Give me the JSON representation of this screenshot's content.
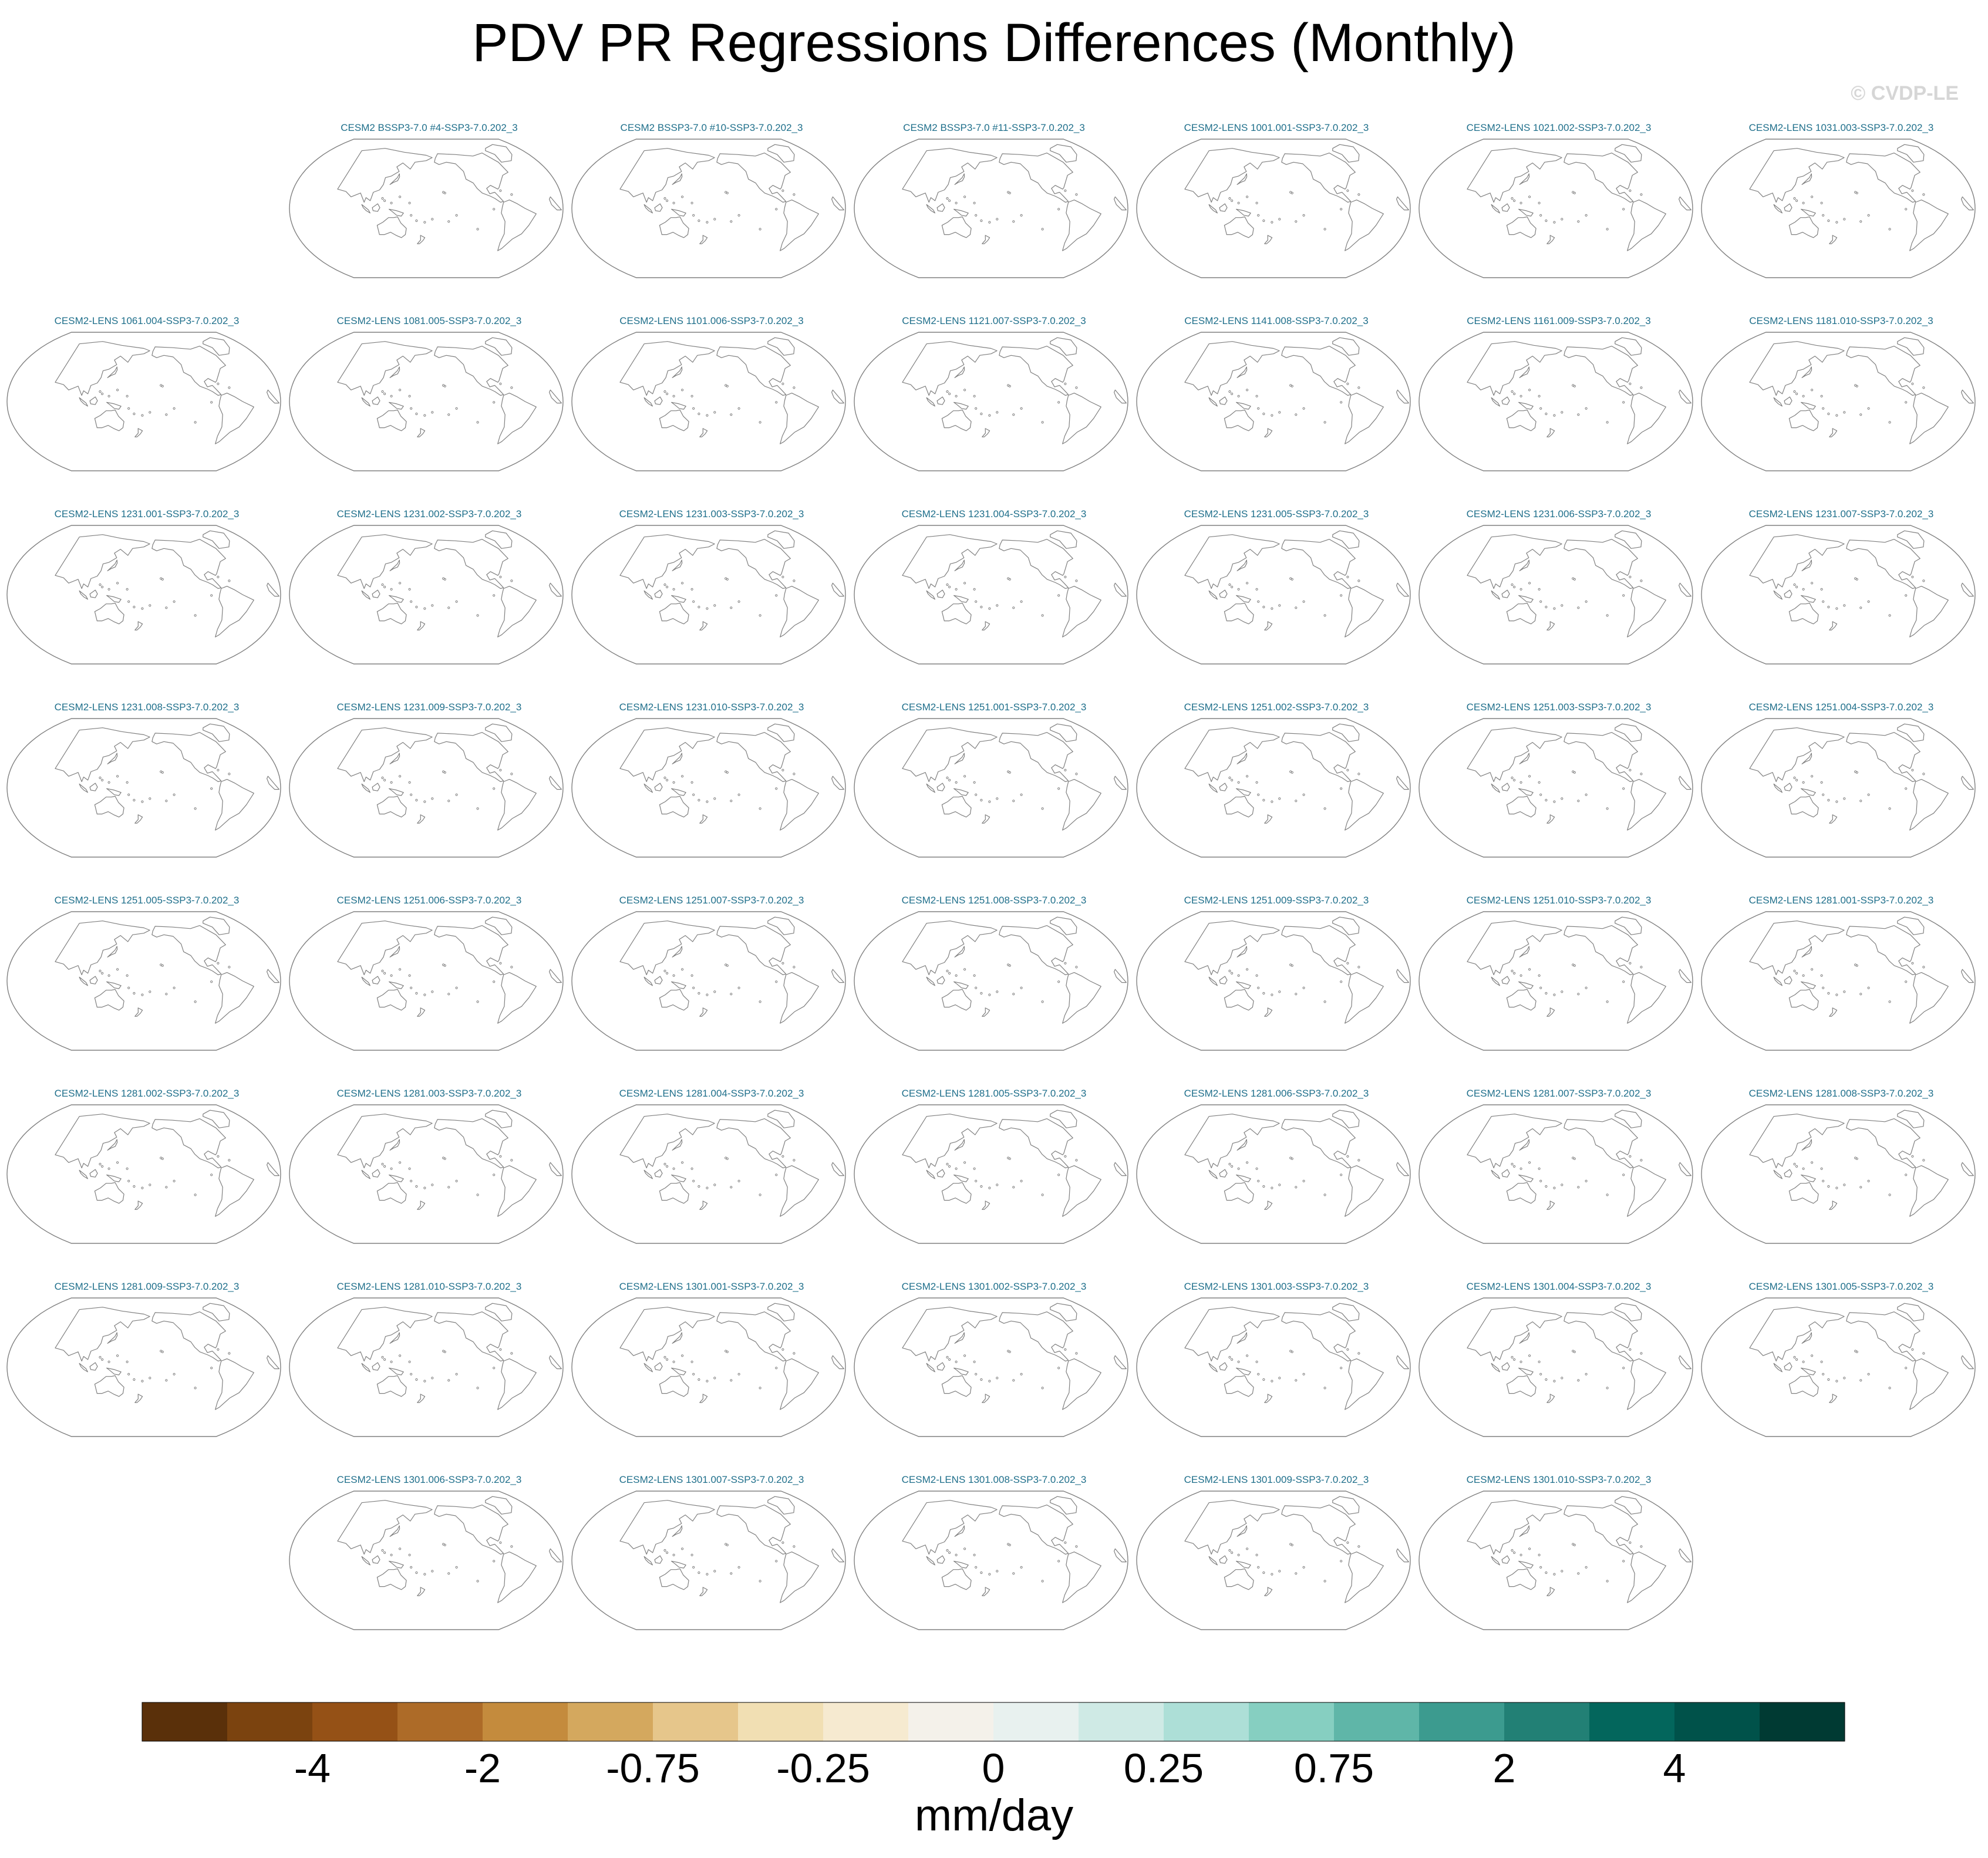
{
  "figure": {
    "title": "PDV PR Regressions Differences (Monthly)",
    "watermark": "© CVDP-LE",
    "panel_title_color": "#1f6f8b",
    "coastline_color": "#808080",
    "map_fill": "#ffffff",
    "projection": "Robinson, Pacific-centered",
    "panels": [
      {
        "row": 0,
        "col": 1,
        "title": "CESM2 BSSP3-7.0 #4-SSP3-7.0.202_3"
      },
      {
        "row": 0,
        "col": 2,
        "title": "CESM2 BSSP3-7.0 #10-SSP3-7.0.202_3"
      },
      {
        "row": 0,
        "col": 3,
        "title": "CESM2 BSSP3-7.0 #11-SSP3-7.0.202_3"
      },
      {
        "row": 0,
        "col": 4,
        "title": "CESM2-LENS 1001.001-SSP3-7.0.202_3"
      },
      {
        "row": 0,
        "col": 5,
        "title": "CESM2-LENS 1021.002-SSP3-7.0.202_3"
      },
      {
        "row": 0,
        "col": 6,
        "title": "CESM2-LENS 1031.003-SSP3-7.0.202_3"
      },
      {
        "row": 1,
        "col": 0,
        "title": "CESM2-LENS 1061.004-SSP3-7.0.202_3"
      },
      {
        "row": 1,
        "col": 1,
        "title": "CESM2-LENS 1081.005-SSP3-7.0.202_3"
      },
      {
        "row": 1,
        "col": 2,
        "title": "CESM2-LENS 1101.006-SSP3-7.0.202_3"
      },
      {
        "row": 1,
        "col": 3,
        "title": "CESM2-LENS 1121.007-SSP3-7.0.202_3"
      },
      {
        "row": 1,
        "col": 4,
        "title": "CESM2-LENS 1141.008-SSP3-7.0.202_3"
      },
      {
        "row": 1,
        "col": 5,
        "title": "CESM2-LENS 1161.009-SSP3-7.0.202_3"
      },
      {
        "row": 1,
        "col": 6,
        "title": "CESM2-LENS 1181.010-SSP3-7.0.202_3"
      },
      {
        "row": 2,
        "col": 0,
        "title": "CESM2-LENS 1231.001-SSP3-7.0.202_3"
      },
      {
        "row": 2,
        "col": 1,
        "title": "CESM2-LENS 1231.002-SSP3-7.0.202_3"
      },
      {
        "row": 2,
        "col": 2,
        "title": "CESM2-LENS 1231.003-SSP3-7.0.202_3"
      },
      {
        "row": 2,
        "col": 3,
        "title": "CESM2-LENS 1231.004-SSP3-7.0.202_3"
      },
      {
        "row": 2,
        "col": 4,
        "title": "CESM2-LENS 1231.005-SSP3-7.0.202_3"
      },
      {
        "row": 2,
        "col": 5,
        "title": "CESM2-LENS 1231.006-SSP3-7.0.202_3"
      },
      {
        "row": 2,
        "col": 6,
        "title": "CESM2-LENS 1231.007-SSP3-7.0.202_3"
      },
      {
        "row": 3,
        "col": 0,
        "title": "CESM2-LENS 1231.008-SSP3-7.0.202_3"
      },
      {
        "row": 3,
        "col": 1,
        "title": "CESM2-LENS 1231.009-SSP3-7.0.202_3"
      },
      {
        "row": 3,
        "col": 2,
        "title": "CESM2-LENS 1231.010-SSP3-7.0.202_3"
      },
      {
        "row": 3,
        "col": 3,
        "title": "CESM2-LENS 1251.001-SSP3-7.0.202_3"
      },
      {
        "row": 3,
        "col": 4,
        "title": "CESM2-LENS 1251.002-SSP3-7.0.202_3"
      },
      {
        "row": 3,
        "col": 5,
        "title": "CESM2-LENS 1251.003-SSP3-7.0.202_3"
      },
      {
        "row": 3,
        "col": 6,
        "title": "CESM2-LENS 1251.004-SSP3-7.0.202_3"
      },
      {
        "row": 4,
        "col": 0,
        "title": "CESM2-LENS 1251.005-SSP3-7.0.202_3"
      },
      {
        "row": 4,
        "col": 1,
        "title": "CESM2-LENS 1251.006-SSP3-7.0.202_3"
      },
      {
        "row": 4,
        "col": 2,
        "title": "CESM2-LENS 1251.007-SSP3-7.0.202_3"
      },
      {
        "row": 4,
        "col": 3,
        "title": "CESM2-LENS 1251.008-SSP3-7.0.202_3"
      },
      {
        "row": 4,
        "col": 4,
        "title": "CESM2-LENS 1251.009-SSP3-7.0.202_3"
      },
      {
        "row": 4,
        "col": 5,
        "title": "CESM2-LENS 1251.010-SSP3-7.0.202_3"
      },
      {
        "row": 4,
        "col": 6,
        "title": "CESM2-LENS 1281.001-SSP3-7.0.202_3"
      },
      {
        "row": 5,
        "col": 0,
        "title": "CESM2-LENS 1281.002-SSP3-7.0.202_3"
      },
      {
        "row": 5,
        "col": 1,
        "title": "CESM2-LENS 1281.003-SSP3-7.0.202_3"
      },
      {
        "row": 5,
        "col": 2,
        "title": "CESM2-LENS 1281.004-SSP3-7.0.202_3"
      },
      {
        "row": 5,
        "col": 3,
        "title": "CESM2-LENS 1281.005-SSP3-7.0.202_3"
      },
      {
        "row": 5,
        "col": 4,
        "title": "CESM2-LENS 1281.006-SSP3-7.0.202_3"
      },
      {
        "row": 5,
        "col": 5,
        "title": "CESM2-LENS 1281.007-SSP3-7.0.202_3"
      },
      {
        "row": 5,
        "col": 6,
        "title": "CESM2-LENS 1281.008-SSP3-7.0.202_3"
      },
      {
        "row": 6,
        "col": 0,
        "title": "CESM2-LENS 1281.009-SSP3-7.0.202_3"
      },
      {
        "row": 6,
        "col": 1,
        "title": "CESM2-LENS 1281.010-SSP3-7.0.202_3"
      },
      {
        "row": 6,
        "col": 2,
        "title": "CESM2-LENS 1301.001-SSP3-7.0.202_3"
      },
      {
        "row": 6,
        "col": 3,
        "title": "CESM2-LENS 1301.002-SSP3-7.0.202_3"
      },
      {
        "row": 6,
        "col": 4,
        "title": "CESM2-LENS 1301.003-SSP3-7.0.202_3"
      },
      {
        "row": 6,
        "col": 5,
        "title": "CESM2-LENS 1301.004-SSP3-7.0.202_3"
      },
      {
        "row": 6,
        "col": 6,
        "title": "CESM2-LENS 1301.005-SSP3-7.0.202_3"
      },
      {
        "row": 7,
        "col": 1,
        "title": "CESM2-LENS 1301.006-SSP3-7.0.202_3"
      },
      {
        "row": 7,
        "col": 2,
        "title": "CESM2-LENS 1301.007-SSP3-7.0.202_3"
      },
      {
        "row": 7,
        "col": 3,
        "title": "CESM2-LENS 1301.008-SSP3-7.0.202_3"
      },
      {
        "row": 7,
        "col": 4,
        "title": "CESM2-LENS 1301.009-SSP3-7.0.202_3"
      },
      {
        "row": 7,
        "col": 5,
        "title": "CESM2-LENS 1301.010-SSP3-7.0.202_3"
      }
    ]
  },
  "colorbar": {
    "units": "mm/day",
    "colors": [
      "#5a300a",
      "#7b430f",
      "#955116",
      "#ad6b28",
      "#c48b3d",
      "#d4a85e",
      "#e6c68b",
      "#f1dfb3",
      "#f6ead0",
      "#f4f1ea",
      "#e8f1ef",
      "#cfeae5",
      "#addfd7",
      "#86cfc1",
      "#5fb6a8",
      "#3c9b8f",
      "#228075",
      "#03665c",
      "#00524a",
      "#003a33"
    ],
    "ticks": [
      {
        "index": 2,
        "label": "-4"
      },
      {
        "index": 4,
        "label": "-2"
      },
      {
        "index": 6,
        "label": "-0.75"
      },
      {
        "index": 8,
        "label": "-0.25"
      },
      {
        "index": 10,
        "label": "0"
      },
      {
        "index": 12,
        "label": "0.25"
      },
      {
        "index": 14,
        "label": "0.75"
      },
      {
        "index": 16,
        "label": "2"
      },
      {
        "index": 18,
        "label": "4"
      }
    ]
  }
}
